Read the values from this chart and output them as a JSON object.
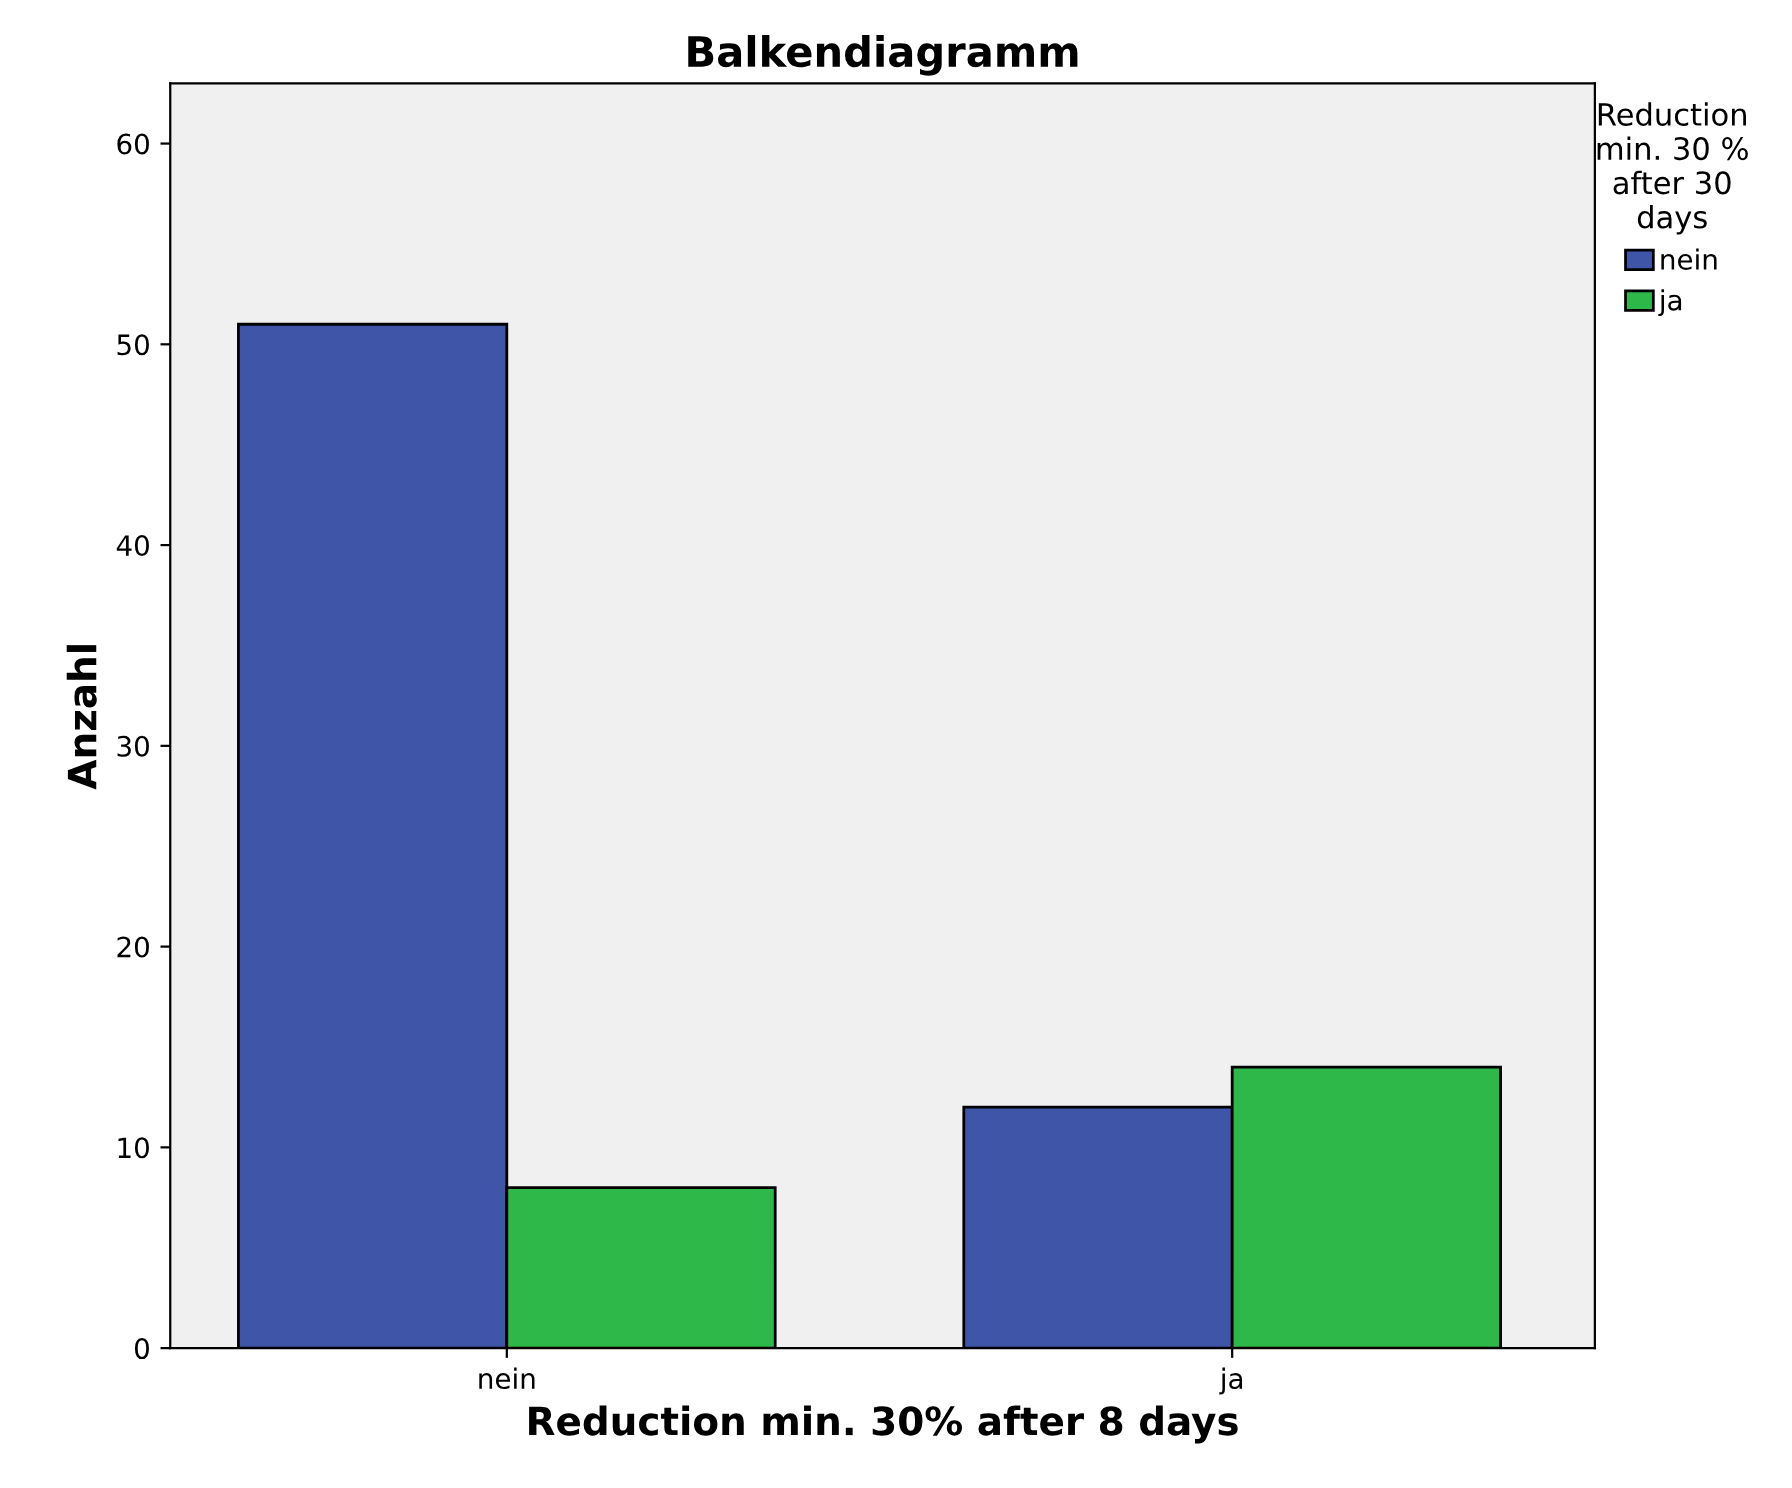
{
  "chart_data": {
    "type": "bar",
    "title": "Balkendiagramm",
    "xlabel": "Reduction min. 30% after 8 days",
    "ylabel": "Anzahl",
    "legend_title": "Reduction\nmin. 30 %\nafter 30\ndays",
    "categories": [
      "nein",
      "ja"
    ],
    "series": [
      {
        "name": "nein",
        "color": "#3f56a8",
        "values": [
          51,
          12
        ]
      },
      {
        "name": "ja",
        "color": "#2eb84a",
        "values": [
          8,
          14
        ]
      }
    ],
    "ylim": [
      0,
      63
    ],
    "yticks": [
      0,
      10,
      20,
      30,
      40,
      50,
      60
    ],
    "grid": false,
    "legend": "right"
  }
}
